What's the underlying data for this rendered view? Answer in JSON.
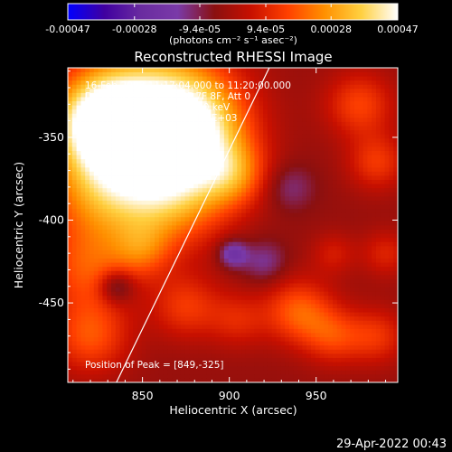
{
  "chart_data": {
    "type": "heatmap",
    "title": "Reconstructed RHESSI Image",
    "xlabel": "Heliocentric X (arcsec)",
    "ylabel": "Heliocentric Y (arcsec)",
    "xlim": [
      807,
      997
    ],
    "ylim": [
      -498,
      -308
    ],
    "x_ticks": [
      "850",
      "900",
      "950"
    ],
    "x_tick_values": [
      850,
      900,
      950
    ],
    "y_ticks": [
      "-350",
      "-400",
      "-450"
    ],
    "y_tick_values": [
      -350,
      -400,
      -450
    ],
    "colorbar": {
      "min": -0.00047,
      "max": 0.00047,
      "tick_labels": [
        "-0.00047",
        "-0.00028",
        "-9.4e-05",
        "9.4e-05",
        "0.00028",
        "0.00047"
      ],
      "tick_values": [
        -0.00047,
        -0.00028,
        -9.4e-05,
        9.4e-05,
        0.00028,
        0.00047
      ],
      "unit_label": "(photons cm⁻² s⁻¹ asec⁻²)",
      "colors": [
        "#0000ff",
        "#4000a0",
        "#6a2ca0",
        "#7a3aa8",
        "#8a1010",
        "#c81000",
        "#ff4000",
        "#ff9000",
        "#ffd040",
        "#ffffff"
      ]
    },
    "annotations": [
      "16-Feb-2003 11:17:04.000 to 11:20:00.000",
      "Detectors: 3F 4F 5F 6F 7F 8F, Att 0",
      "Energy Range: 12.0 - 25.0 keV",
      "Clean     Total counts: 2.00E+03",
      "Position of Peak = [849,-325]"
    ],
    "peak": {
      "x": 849,
      "y": -325
    },
    "limb_line": [
      [
        835,
        -498
      ],
      [
        923,
        -308
      ]
    ],
    "sources": [
      {
        "x": 852,
        "y": -335,
        "r": 30,
        "value": 0.00045
      },
      {
        "x": 880,
        "y": -345,
        "r": 22,
        "value": 0.00032
      },
      {
        "x": 825,
        "y": -340,
        "r": 18,
        "value": 0.00036
      },
      {
        "x": 830,
        "y": -380,
        "r": 25,
        "value": 0.0003
      },
      {
        "x": 870,
        "y": -385,
        "r": 22,
        "value": 0.00024
      },
      {
        "x": 902,
        "y": -372,
        "r": 14,
        "value": 0.0002
      },
      {
        "x": 818,
        "y": -430,
        "r": 18,
        "value": 0.00018
      },
      {
        "x": 850,
        "y": -418,
        "r": 12,
        "value": 0.00015
      },
      {
        "x": 875,
        "y": -452,
        "r": 14,
        "value": 0.00016
      },
      {
        "x": 820,
        "y": -470,
        "r": 16,
        "value": 0.0002
      },
      {
        "x": 905,
        "y": -460,
        "r": 12,
        "value": 0.00012
      },
      {
        "x": 940,
        "y": -455,
        "r": 14,
        "value": 0.00022
      },
      {
        "x": 960,
        "y": -470,
        "r": 12,
        "value": 0.00016
      },
      {
        "x": 985,
        "y": -470,
        "r": 12,
        "value": 0.00015
      },
      {
        "x": 975,
        "y": -330,
        "r": 14,
        "value": 0.00018
      },
      {
        "x": 985,
        "y": -365,
        "r": 12,
        "value": 0.00016
      },
      {
        "x": 990,
        "y": -420,
        "r": 10,
        "value": 0.00012
      },
      {
        "x": 960,
        "y": -420,
        "r": 9,
        "value": 0.0001
      },
      {
        "x": 920,
        "y": -425,
        "r": 9,
        "value": -0.00012
      },
      {
        "x": 935,
        "y": -380,
        "r": 10,
        "value": -0.0001
      },
      {
        "x": 835,
        "y": -440,
        "r": 7,
        "value": -0.00018
      },
      {
        "x": 902,
        "y": -420,
        "r": 6,
        "value": -0.0002
      }
    ]
  },
  "footer": {
    "timestamp": "29-Apr-2022 00:43"
  }
}
